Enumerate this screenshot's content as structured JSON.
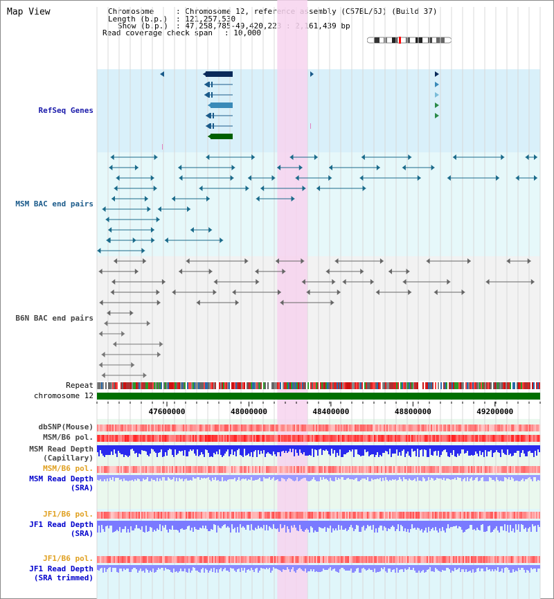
{
  "window": {
    "title": "Map View"
  },
  "info": {
    "chromosome_key": "Chromosome",
    "chromosome_val": ": Chromosome 12, reference assembly (C57BL/6J) (Build 37)",
    "length_key": "Length (b.p.)",
    "length_val": ": 121,257,530",
    "show_key": "Show (b.p.)",
    "show_val": ": 47,258,785-49,420,223 : 2,161,439 bp",
    "coverage_key": "Read coverage check span",
    "coverage_val": ": 10,000"
  },
  "tracks": {
    "refseq": "RefSeq Genes",
    "msm_bac": "MSM BAC end pairs",
    "b6n_bac": "B6N BAC end pairs",
    "repeat": "Repeat",
    "chromosome": "chromosome 12",
    "dbsnp": "dbSNP(Mouse)",
    "msm_b6_pol": "MSM/B6 pol.",
    "msm_read_depth_cap_1": "MSM Read Depth",
    "msm_read_depth_cap_2": "(Capillary)",
    "msm_b6_pol_sra": "MSM/B6 pol.",
    "msm_read_depth_sra_1": "MSM Read Depth",
    "msm_read_depth_sra_2": "(SRA)",
    "jf1_b6_pol": "JF1/B6 pol.",
    "jf1_read_depth_sra_1": "JF1 Read Depth",
    "jf1_read_depth_sra_2": "(SRA)",
    "jf1_b6_pol_trim": "JF1/B6 pol.",
    "jf1_read_depth_trim_1": "JF1 Read Depth",
    "jf1_read_depth_trim_2": "(SRA trimmed)"
  },
  "axis": {
    "ticks": [
      "47600000",
      "48000000",
      "48400000",
      "48800000",
      "49200000"
    ],
    "tick_values": [
      47600000,
      48000000,
      48400000,
      48800000,
      49200000
    ],
    "range_start": 47258785,
    "range_end": 49420223
  },
  "highlight": {
    "start": 48138000,
    "end": 48285000
  },
  "colors": {
    "refseq_bg": "#d9f0fa",
    "msm_bg": "#e6f8fa",
    "b6n_bg": "#f2f2f2",
    "highlight": "#f7d3ef",
    "chromosome": "#007000",
    "lower_bg": "#eaf8ee",
    "lower_bg2": "#e0f6fa"
  }
}
